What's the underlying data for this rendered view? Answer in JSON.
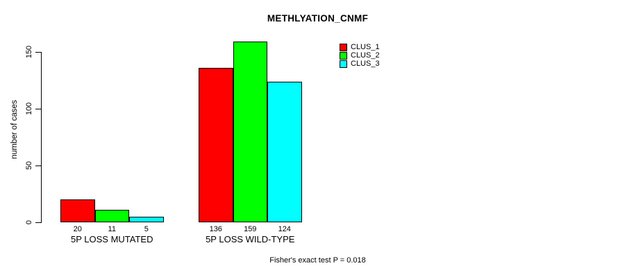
{
  "chart_data": {
    "type": "bar",
    "title": "METHLYATION_CNMF",
    "xlabel": "",
    "ylabel": "number of cases",
    "categories": [
      "5P LOSS MUTATED",
      "5P LOSS WILD-TYPE"
    ],
    "series": [
      {
        "name": "CLUS_1",
        "color": "#ff0000",
        "values": [
          20,
          136
        ]
      },
      {
        "name": "CLUS_2",
        "color": "#00ff00",
        "values": [
          11,
          159
        ]
      },
      {
        "name": "CLUS_3",
        "color": "#00ffff",
        "values": [
          5,
          124
        ]
      }
    ],
    "yticks": [
      0,
      50,
      100,
      150
    ],
    "ylim": [
      0,
      150
    ],
    "grid": false,
    "legend_position": "top-right",
    "legend_entries": [
      "CLUS_1",
      "CLUS_2",
      "CLUS_3"
    ],
    "bar_border_color": "#000000",
    "annotation": "Fisher's exact test P = 0.018"
  }
}
